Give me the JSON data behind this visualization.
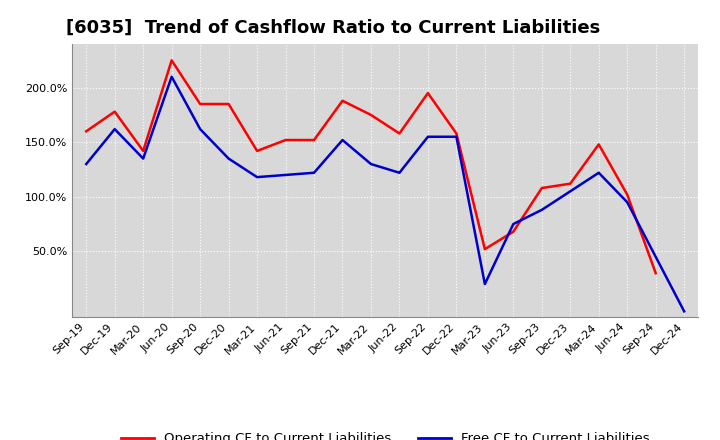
{
  "title": "[6035]  Trend of Cashflow Ratio to Current Liabilities",
  "labels": [
    "Sep-19",
    "Dec-19",
    "Mar-20",
    "Jun-20",
    "Sep-20",
    "Dec-20",
    "Mar-21",
    "Jun-21",
    "Sep-21",
    "Dec-21",
    "Mar-22",
    "Jun-22",
    "Sep-22",
    "Dec-22",
    "Mar-23",
    "Jun-23",
    "Sep-23",
    "Dec-23",
    "Mar-24",
    "Jun-24",
    "Sep-24",
    "Dec-24"
  ],
  "operating_cf": [
    1.6,
    1.78,
    1.42,
    2.25,
    1.85,
    1.85,
    1.42,
    1.52,
    1.52,
    1.88,
    1.75,
    1.58,
    1.95,
    1.58,
    0.52,
    0.68,
    1.08,
    1.12,
    1.48,
    1.02,
    0.3,
    null
  ],
  "free_cf": [
    1.3,
    1.62,
    1.35,
    2.1,
    1.62,
    1.35,
    1.18,
    1.2,
    1.22,
    1.52,
    1.3,
    1.22,
    1.55,
    1.55,
    0.2,
    0.75,
    0.88,
    1.05,
    1.22,
    0.95,
    null,
    -0.05
  ],
  "operating_color": "#ff0000",
  "free_color": "#0000cc",
  "fig_background": "#ffffff",
  "plot_background": "#d8d8d8",
  "grid_color": "#ffffff",
  "ylim_min": -0.1,
  "ylim_max": 2.4,
  "yticks": [
    0.5,
    1.0,
    1.5,
    2.0
  ],
  "ytick_labels": [
    "50.0%",
    "100.0%",
    "150.0%",
    "200.0%"
  ],
  "legend_op": "Operating CF to Current Liabilities",
  "legend_free": "Free CF to Current Liabilities",
  "title_fontsize": 13,
  "tick_fontsize": 8,
  "legend_fontsize": 9.5
}
